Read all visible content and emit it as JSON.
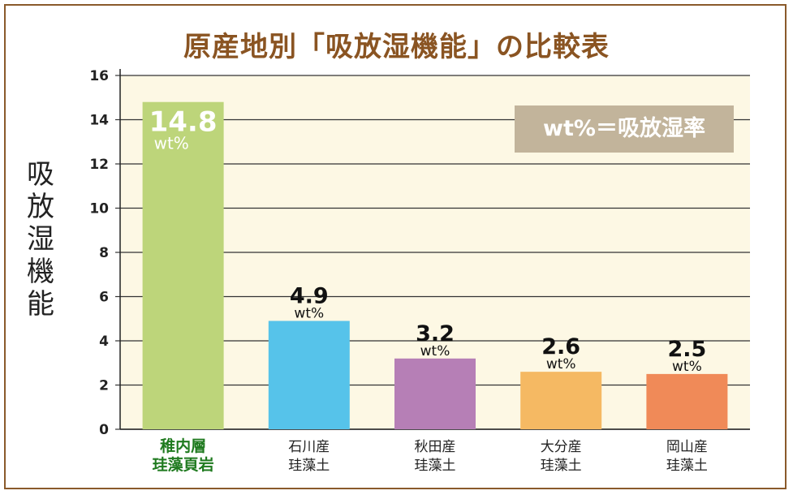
{
  "title": "原産地別「吸放湿機能」の比較表",
  "chart_data": {
    "type": "bar",
    "title": "原産地別「吸放湿機能」の比較表",
    "ylabel": "吸放湿機能",
    "ylim": [
      0,
      16
    ],
    "yticks": [
      "0",
      "2",
      "4",
      "6",
      "8",
      "10",
      "12",
      "14",
      "16"
    ],
    "categories": [
      [
        "稚内層",
        "珪藻頁岩"
      ],
      [
        "石川産",
        "珪藻土"
      ],
      [
        "秋田産",
        "珪藻土"
      ],
      [
        "大分産",
        "珪藻土"
      ],
      [
        "岡山産",
        "珪藻土"
      ]
    ],
    "values": [
      14.8,
      4.9,
      3.2,
      2.6,
      2.5
    ],
    "value_labels": [
      "14.8",
      "4.9",
      "3.2",
      "2.6",
      "2.5"
    ],
    "unit": "wt%",
    "colors": [
      "#bdd57a",
      "#56c3ea",
      "#b67fb6",
      "#f5b963",
      "#f08a58"
    ],
    "highlight_index": 0,
    "highlight_label_color": "#1f7a1f",
    "plot_background": "#fdf8e4",
    "grid": true,
    "annotation": "wt%＝吸放湿率",
    "annotation_color": "#c2b49b"
  }
}
